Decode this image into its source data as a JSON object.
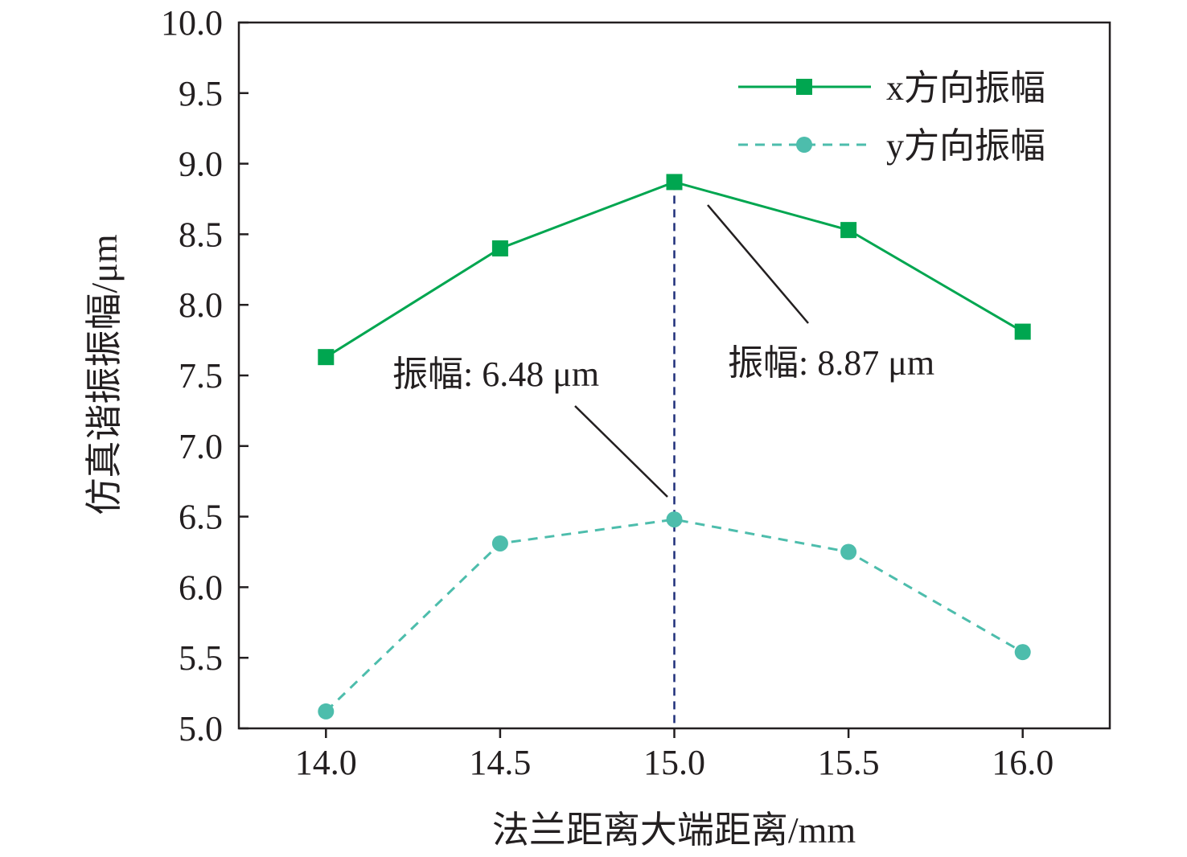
{
  "chart_data": {
    "type": "line",
    "x": [
      14.0,
      14.5,
      15.0,
      15.5,
      16.0
    ],
    "series": [
      {
        "name": "x方向振幅",
        "values": [
          7.63,
          8.4,
          8.87,
          8.53,
          7.81
        ],
        "color": "#00a650",
        "line_style": "solid",
        "marker": "square"
      },
      {
        "name": "y方向振幅",
        "values": [
          5.12,
          6.31,
          6.48,
          6.25,
          5.54
        ],
        "color": "#4dbdac",
        "line_style": "dashed",
        "marker": "circle"
      }
    ],
    "xlabel": "法兰距离大端距离/mm",
    "ylabel": "仿真谐振振幅/μm",
    "xlim": [
      13.75,
      16.25
    ],
    "ylim": [
      5.0,
      10.0
    ],
    "xticks": [
      "14.0",
      "14.5",
      "15.0",
      "15.5",
      "16.0"
    ],
    "yticks": [
      "5.0",
      "5.5",
      "6.0",
      "6.5",
      "7.0",
      "7.5",
      "8.0",
      "8.5",
      "9.0",
      "9.5",
      "10.0"
    ],
    "grid": false,
    "legend_position": "top-right",
    "reference_line": {
      "x": 15.0,
      "color": "#1f2f7a",
      "style": "dashed"
    },
    "annotations": [
      {
        "text": "振幅: 6.48 μm",
        "series": 1,
        "x": 15.0,
        "y": 6.48
      },
      {
        "text": "振幅: 8.87 μm",
        "series": 0,
        "x": 15.0,
        "y": 8.87
      }
    ]
  }
}
